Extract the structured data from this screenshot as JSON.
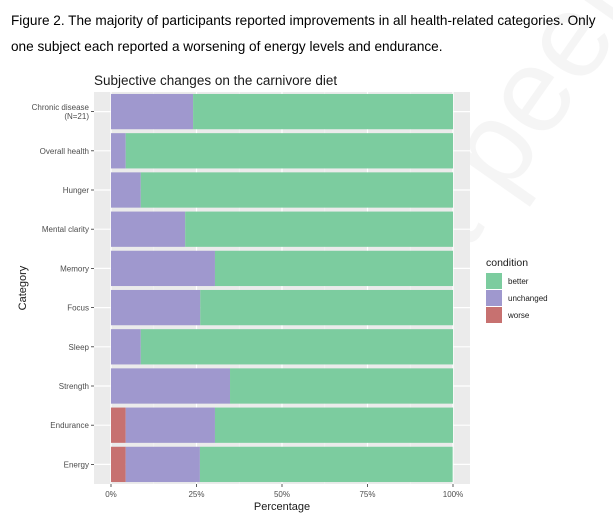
{
  "figure": {
    "caption": "Figure 2. The majority of participants reported improvements in all health-related categories. Only one subject each reported a worsening of energy levels and endurance."
  },
  "watermark": {
    "text": "not peer reviewed"
  },
  "chart_data": {
    "type": "bar",
    "orientation": "horizontal",
    "stacked": true,
    "title": "Subjective changes on the carnivore diet",
    "xlabel": "Percentage",
    "ylabel": "Category",
    "xlim": [
      0,
      100
    ],
    "x_ticks": [
      "0%",
      "25%",
      "50%",
      "75%",
      "100%"
    ],
    "grid": true,
    "legend_position": "right",
    "legend_title": "condition",
    "categories": [
      "Chronic disease\n(N=21)",
      "Overall health",
      "Hunger",
      "Mental clarity",
      "Memory",
      "Focus",
      "Sleep",
      "Strength",
      "Endurance",
      "Energy"
    ],
    "series": [
      {
        "name": "worse",
        "color": "#c77170",
        "values": [
          0,
          0,
          0,
          0,
          0,
          0,
          0,
          0,
          4.3,
          4.3
        ]
      },
      {
        "name": "unchanged",
        "color": "#9f98ce",
        "values": [
          24,
          4.3,
          8.7,
          21.7,
          30.4,
          26.1,
          8.7,
          34.8,
          26.1,
          21.7
        ]
      },
      {
        "name": "better",
        "color": "#7ccc9f",
        "values": [
          76,
          95.7,
          91.3,
          78.3,
          69.6,
          73.9,
          91.3,
          65.2,
          69.6,
          73.9
        ]
      }
    ],
    "legend_order": [
      "better",
      "unchanged",
      "worse"
    ]
  }
}
